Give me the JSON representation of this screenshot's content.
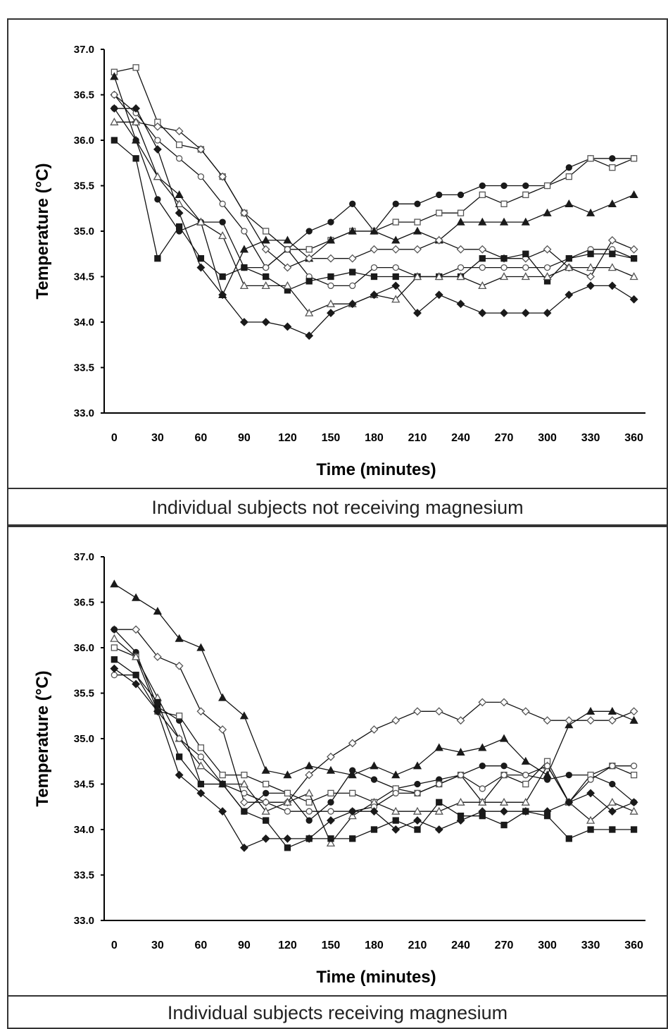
{
  "captions": {
    "top": "Individual subjects not receiving  magnesium",
    "bottom": "Individual subjects receiving  magnesium"
  },
  "chart_data": [
    {
      "type": "line",
      "title": "",
      "xlabel": "Time (minutes)",
      "ylabel": "Temperature (°C)",
      "x": [
        0,
        15,
        30,
        45,
        60,
        75,
        90,
        105,
        120,
        135,
        150,
        165,
        180,
        195,
        210,
        225,
        240,
        255,
        270,
        285,
        300,
        315,
        330,
        345,
        360
      ],
      "xticks": [
        0,
        30,
        60,
        90,
        120,
        150,
        180,
        210,
        240,
        270,
        300,
        330,
        360
      ],
      "xlim": [
        -7,
        368
      ],
      "ylim": [
        33.0,
        37.0
      ],
      "yticks": [
        "33.0",
        "33.5",
        "34.0",
        "34.5",
        "35.0",
        "35.5",
        "36.0",
        "36.5",
        "37.0"
      ],
      "grid": false,
      "legend": "none",
      "series": [
        {
          "marker": "circle-filled",
          "values": [
            36.35,
            36.0,
            35.35,
            35.0,
            35.1,
            35.1,
            34.6,
            34.6,
            34.8,
            35.0,
            35.1,
            35.3,
            35.0,
            35.3,
            35.3,
            35.4,
            35.4,
            35.5,
            35.5,
            35.5,
            35.5,
            35.7,
            35.8,
            35.8,
            35.8
          ]
        },
        {
          "marker": "square-open",
          "values": [
            36.75,
            36.8,
            36.2,
            35.95,
            35.9,
            35.6,
            35.2,
            35.0,
            34.8,
            34.8,
            34.9,
            35.0,
            35.0,
            35.1,
            35.1,
            35.2,
            35.2,
            35.4,
            35.3,
            35.4,
            35.5,
            35.6,
            35.8,
            35.7,
            35.8
          ]
        },
        {
          "marker": "triangle-filled",
          "values": [
            36.7,
            36.0,
            35.6,
            35.4,
            35.1,
            34.3,
            34.8,
            34.9,
            34.9,
            34.7,
            34.9,
            35.0,
            35.0,
            34.9,
            35.0,
            34.9,
            35.1,
            35.1,
            35.1,
            35.1,
            35.2,
            35.3,
            35.2,
            35.3,
            35.4
          ]
        },
        {
          "marker": "diamond-open",
          "values": [
            36.5,
            36.2,
            36.15,
            36.1,
            35.9,
            35.6,
            35.2,
            34.8,
            34.6,
            34.7,
            34.7,
            34.7,
            34.8,
            34.8,
            34.8,
            34.9,
            34.8,
            34.8,
            34.7,
            34.7,
            34.8,
            34.6,
            34.5,
            34.9,
            34.8
          ]
        },
        {
          "marker": "circle-open",
          "values": [
            36.5,
            36.3,
            36.0,
            35.8,
            35.6,
            35.3,
            35.0,
            34.6,
            34.8,
            34.5,
            34.4,
            34.4,
            34.6,
            34.6,
            34.5,
            34.5,
            34.6,
            34.6,
            34.6,
            34.6,
            34.6,
            34.7,
            34.8,
            34.8,
            34.7
          ]
        },
        {
          "marker": "square-filled",
          "values": [
            36.0,
            35.8,
            34.7,
            35.05,
            34.7,
            34.5,
            34.6,
            34.5,
            34.35,
            34.45,
            34.5,
            34.55,
            34.5,
            34.5,
            34.5,
            34.5,
            34.5,
            34.7,
            34.7,
            34.75,
            34.45,
            34.7,
            34.75,
            34.75,
            34.7
          ]
        },
        {
          "marker": "triangle-open",
          "values": [
            36.2,
            36.2,
            35.6,
            35.3,
            35.1,
            34.95,
            34.4,
            34.4,
            34.4,
            34.1,
            34.2,
            34.2,
            34.3,
            34.25,
            34.5,
            34.5,
            34.5,
            34.4,
            34.5,
            34.5,
            34.5,
            34.6,
            34.6,
            34.6,
            34.5
          ]
        },
        {
          "marker": "diamond-filled",
          "values": [
            36.35,
            36.35,
            35.9,
            35.2,
            34.6,
            34.3,
            34.0,
            34.0,
            33.95,
            33.85,
            34.1,
            34.2,
            34.3,
            34.4,
            34.1,
            34.3,
            34.2,
            34.1,
            34.1,
            34.1,
            34.1,
            34.3,
            34.4,
            34.4,
            34.25
          ]
        }
      ]
    },
    {
      "type": "line",
      "title": "",
      "xlabel": "Time (minutes)",
      "ylabel": "Temperature (°C)",
      "x": [
        0,
        15,
        30,
        45,
        60,
        75,
        90,
        105,
        120,
        135,
        150,
        165,
        180,
        195,
        210,
        225,
        240,
        255,
        270,
        285,
        300,
        315,
        330,
        345,
        360
      ],
      "xticks": [
        0,
        30,
        60,
        90,
        120,
        150,
        180,
        210,
        240,
        270,
        300,
        330,
        360
      ],
      "xlim": [
        -7,
        368
      ],
      "ylim": [
        33.0,
        37.0
      ],
      "yticks": [
        "33.0",
        "33.5",
        "34.0",
        "34.5",
        "35.0",
        "35.5",
        "36.0",
        "36.5",
        "37.0"
      ],
      "grid": false,
      "legend": "none",
      "series": [
        {
          "marker": "triangle-filled",
          "values": [
            36.7,
            36.55,
            36.4,
            36.1,
            36.0,
            35.45,
            35.25,
            34.65,
            34.6,
            34.7,
            34.65,
            34.6,
            34.7,
            34.6,
            34.7,
            34.9,
            34.85,
            34.9,
            35.0,
            34.75,
            34.6,
            35.15,
            35.3,
            35.3,
            35.2
          ]
        },
        {
          "marker": "diamond-open",
          "values": [
            36.2,
            36.2,
            35.9,
            35.8,
            35.3,
            35.1,
            34.3,
            34.3,
            34.3,
            34.6,
            34.8,
            34.95,
            35.1,
            35.2,
            35.3,
            35.3,
            35.2,
            35.4,
            35.4,
            35.3,
            35.2,
            35.2,
            35.2,
            35.2,
            35.3
          ]
        },
        {
          "marker": "circle-filled",
          "values": [
            36.2,
            35.95,
            35.35,
            35.2,
            34.5,
            34.5,
            34.2,
            34.4,
            34.4,
            34.1,
            34.3,
            34.65,
            34.55,
            34.45,
            34.5,
            34.55,
            34.6,
            34.7,
            34.7,
            34.6,
            34.55,
            34.6,
            34.6,
            34.5,
            34.3
          ]
        },
        {
          "marker": "square-open",
          "values": [
            36.0,
            35.9,
            35.3,
            35.25,
            34.9,
            34.6,
            34.6,
            34.5,
            34.4,
            34.3,
            34.4,
            34.4,
            34.3,
            34.45,
            34.4,
            34.5,
            34.6,
            34.3,
            34.6,
            34.5,
            34.75,
            34.3,
            34.6,
            34.7,
            34.6
          ]
        },
        {
          "marker": "triangle-open",
          "values": [
            36.1,
            35.9,
            35.45,
            35.0,
            34.7,
            34.5,
            34.5,
            34.2,
            34.3,
            34.4,
            33.85,
            34.15,
            34.3,
            34.2,
            34.2,
            34.2,
            34.3,
            34.3,
            34.3,
            34.3,
            34.7,
            34.3,
            34.1,
            34.3,
            34.2
          ]
        },
        {
          "marker": "circle-open",
          "values": [
            35.7,
            35.7,
            35.3,
            35.0,
            34.8,
            34.5,
            34.4,
            34.3,
            34.2,
            34.2,
            34.2,
            34.2,
            34.25,
            34.4,
            34.4,
            34.5,
            34.6,
            34.45,
            34.6,
            34.6,
            34.7,
            34.3,
            34.55,
            34.7,
            34.7
          ]
        },
        {
          "marker": "square-filled",
          "values": [
            35.87,
            35.7,
            35.4,
            34.8,
            34.5,
            34.5,
            34.2,
            34.1,
            33.8,
            33.9,
            33.9,
            33.9,
            34.0,
            34.1,
            34.0,
            34.3,
            34.15,
            34.15,
            34.05,
            34.2,
            34.15,
            33.9,
            34.0,
            34.0,
            34.0
          ]
        },
        {
          "marker": "diamond-filled",
          "values": [
            35.77,
            35.6,
            35.3,
            34.6,
            34.4,
            34.2,
            33.8,
            33.9,
            33.9,
            33.9,
            34.1,
            34.2,
            34.2,
            34.0,
            34.1,
            34.0,
            34.1,
            34.2,
            34.2,
            34.2,
            34.2,
            34.3,
            34.4,
            34.2,
            34.3
          ]
        }
      ]
    }
  ]
}
